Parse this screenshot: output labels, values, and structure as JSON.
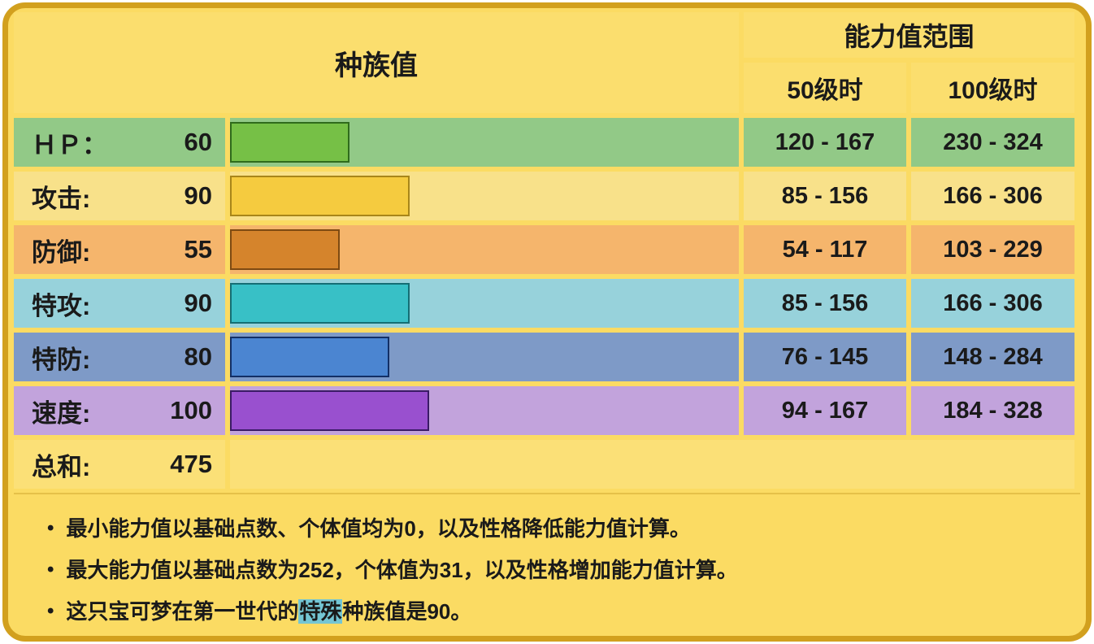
{
  "chart_data": {
    "type": "bar",
    "title": "种族值",
    "categories": [
      "ＨＰ",
      "攻击",
      "防御",
      "特攻",
      "特防",
      "速度"
    ],
    "values": [
      60,
      90,
      55,
      90,
      80,
      100
    ],
    "total": 475,
    "value_axis_range": [
      0,
      255
    ],
    "bar_colors": [
      "#76C046",
      "#F5CB3F",
      "#D5842C",
      "#38C0C6",
      "#4B85D1",
      "#9950CF"
    ],
    "series": [
      {
        "name": "50级时",
        "values": [
          "120 - 167",
          "85 - 156",
          "54 - 117",
          "85 - 156",
          "76 - 145",
          "94 - 167"
        ]
      },
      {
        "name": "100级时",
        "values": [
          "230 - 324",
          "166 - 306",
          "103 - 229",
          "166 - 306",
          "148 - 284",
          "184 - 328"
        ]
      }
    ],
    "legend_position": "table-columns",
    "grid": false
  },
  "table": {
    "value_max": 255,
    "header": {
      "base_stats": "种族值",
      "range_title": "能力值范围",
      "lv50": "50级时",
      "lv100": "100级时"
    },
    "rows": [
      {
        "label": "ＨＰ：",
        "value": 60,
        "lv50": "120 - 167",
        "lv100": "230 - 324",
        "row_bg": "#92C987",
        "bar_color": "#76C046",
        "bar_border": "#2F6B1C"
      },
      {
        "label": "攻击:",
        "value": 90,
        "lv50": "85 - 156",
        "lv100": "166 - 306",
        "row_bg": "#F8E18A",
        "bar_color": "#F5CB3F",
        "bar_border": "#A8861A"
      },
      {
        "label": "防御:",
        "value": 55,
        "lv50": "54 - 117",
        "lv100": "103 - 229",
        "row_bg": "#F5B56C",
        "bar_color": "#D5842C",
        "bar_border": "#7E4A12"
      },
      {
        "label": "特攻:",
        "value": 90,
        "lv50": "85 - 156",
        "lv100": "166 - 306",
        "row_bg": "#97D2DB",
        "bar_color": "#38C0C6",
        "bar_border": "#156E74"
      },
      {
        "label": "特防:",
        "value": 80,
        "lv50": "76 - 145",
        "lv100": "148 - 284",
        "row_bg": "#7E9AC7",
        "bar_color": "#4B85D1",
        "bar_border": "#132F66"
      },
      {
        "label": "速度:",
        "value": 100,
        "lv50": "94 - 167",
        "lv100": "184 - 328",
        "row_bg": "#C2A3DC",
        "bar_color": "#9950CF",
        "bar_border": "#3A1B66"
      }
    ],
    "total": {
      "label": "总和:",
      "value": 475
    }
  },
  "notes": {
    "bullet": "•",
    "items": [
      {
        "text": "最小能力值以基础点数、个体值均为0，以及性格降低能力值计算。"
      },
      {
        "text": "最大能力值以基础点数为252，个体值为31，以及性格增加能力值计算。"
      },
      {
        "prefix": "这只宝可梦在第一世代的",
        "link": "特殊",
        "middle": "种族值是",
        "bold": "90",
        "suffix": "。"
      }
    ],
    "highlight_color": "#74C6D4"
  },
  "theme": {
    "card_bg": "#FBDB63",
    "card_border": "#D2A01E",
    "header_cell_bg": "#FBDE6E",
    "sum_cell_bg": "#FBE077",
    "text_color": "#1A1A1A"
  }
}
